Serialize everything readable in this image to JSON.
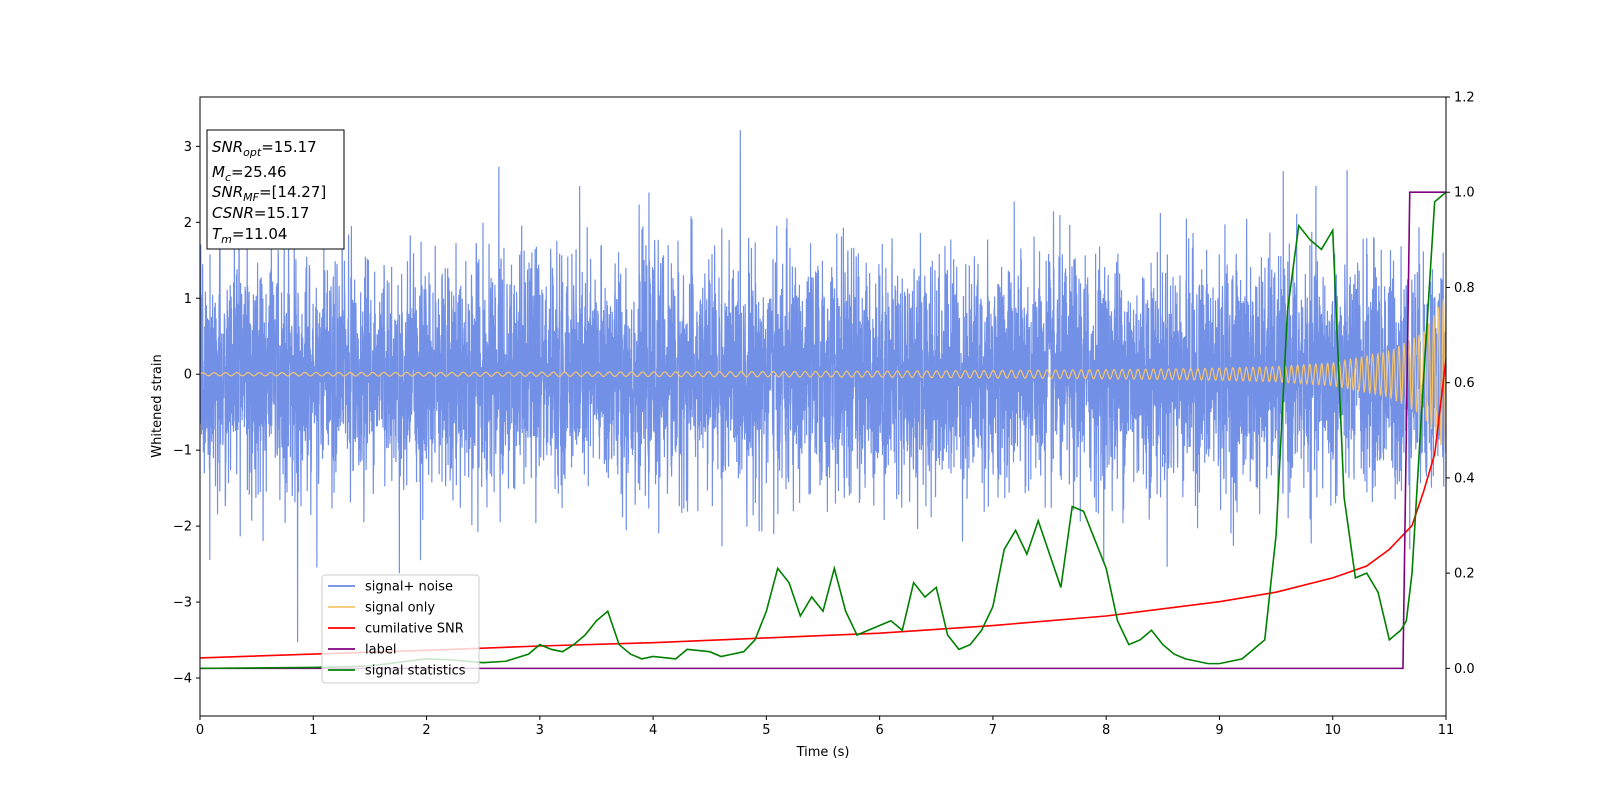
{
  "chart_data": {
    "type": "line",
    "xlabel": "Time (s)",
    "ylabel": "Whitened strain",
    "xlim": [
      0,
      11
    ],
    "ylim_left": [
      -4.5,
      3.65
    ],
    "ylim_right": [
      -0.1,
      1.2
    ],
    "x_ticks": [
      0,
      1,
      2,
      3,
      4,
      5,
      6,
      7,
      8,
      9,
      10,
      11
    ],
    "y_ticks_left": [
      -4,
      -3,
      -2,
      -1,
      0,
      1,
      2,
      3
    ],
    "y_ticks_right": [
      0.0,
      0.2,
      0.4,
      0.6,
      0.8,
      1.0,
      1.2
    ],
    "info_box": [
      {
        "main": "SNR",
        "sub": "opt",
        "rest": "=15.17"
      },
      {
        "main": "M",
        "sub": "c",
        "rest": "=25.46"
      },
      {
        "main": "SNR",
        "sub": "MF",
        "rest": "=[14.27]"
      },
      {
        "main": "CSNR",
        "sub": "",
        "rest": "=15.17"
      },
      {
        "main": "T",
        "sub": "m",
        "rest": "=11.04"
      }
    ],
    "legend_position": "lower-left",
    "series": [
      {
        "name": "signal+ noise",
        "axis": "left",
        "color": "#6b8ae6",
        "style": "dense-noise",
        "amplitude_envelope": [
          -1.6,
          1.6
        ],
        "peak_range": [
          -3.75,
          3.3
        ]
      },
      {
        "name": "signal only",
        "axis": "left",
        "color": "#f5c46e",
        "style": "chirp",
        "x": [
          0,
          2,
          4,
          6,
          8,
          9,
          9.5,
          10,
          10.5,
          10.8,
          11
        ],
        "amplitude": [
          0.02,
          0.025,
          0.03,
          0.04,
          0.06,
          0.08,
          0.1,
          0.15,
          0.3,
          0.55,
          1.05
        ]
      },
      {
        "name": "cumilative SNR",
        "axis": "right",
        "color": "#ff0000",
        "x": [
          0,
          1,
          2,
          3,
          4,
          5,
          6,
          7,
          8,
          9,
          9.5,
          10,
          10.3,
          10.5,
          10.7,
          10.8,
          10.9,
          11
        ],
        "y": [
          0.022,
          0.03,
          0.038,
          0.047,
          0.054,
          0.064,
          0.074,
          0.09,
          0.11,
          0.14,
          0.16,
          0.19,
          0.215,
          0.25,
          0.3,
          0.37,
          0.45,
          0.65
        ]
      },
      {
        "name": "label",
        "axis": "right",
        "color": "#800080",
        "x": [
          0,
          10.62,
          10.68,
          11
        ],
        "y": [
          0,
          0,
          1,
          1
        ]
      },
      {
        "name": "signal statistics",
        "axis": "right",
        "color": "#008000",
        "x": [
          0,
          0.5,
          1,
          1.5,
          2,
          2.2,
          2.5,
          2.7,
          2.9,
          3.0,
          3.1,
          3.2,
          3.3,
          3.4,
          3.5,
          3.6,
          3.7,
          3.8,
          3.9,
          4.0,
          4.2,
          4.3,
          4.5,
          4.6,
          4.7,
          4.8,
          4.9,
          5.0,
          5.1,
          5.2,
          5.3,
          5.4,
          5.5,
          5.6,
          5.7,
          5.8,
          5.9,
          6.0,
          6.1,
          6.2,
          6.3,
          6.4,
          6.5,
          6.6,
          6.7,
          6.8,
          6.9,
          7.0,
          7.1,
          7.2,
          7.3,
          7.4,
          7.5,
          7.6,
          7.7,
          7.8,
          7.9,
          8.0,
          8.1,
          8.2,
          8.3,
          8.4,
          8.5,
          8.6,
          8.7,
          8.8,
          8.9,
          9.0,
          9.1,
          9.2,
          9.3,
          9.4,
          9.5,
          9.6,
          9.7,
          9.8,
          9.9,
          10.0,
          10.1,
          10.2,
          10.3,
          10.4,
          10.5,
          10.6,
          10.65,
          10.7,
          10.8,
          10.9,
          11.0
        ],
        "y": [
          0.0,
          0.001,
          0.002,
          0.005,
          0.02,
          0.018,
          0.012,
          0.015,
          0.03,
          0.05,
          0.04,
          0.035,
          0.05,
          0.07,
          0.1,
          0.12,
          0.05,
          0.03,
          0.02,
          0.025,
          0.02,
          0.04,
          0.035,
          0.025,
          0.03,
          0.035,
          0.06,
          0.12,
          0.21,
          0.18,
          0.11,
          0.15,
          0.12,
          0.21,
          0.12,
          0.07,
          0.08,
          0.09,
          0.1,
          0.08,
          0.18,
          0.15,
          0.17,
          0.07,
          0.04,
          0.05,
          0.08,
          0.13,
          0.25,
          0.29,
          0.24,
          0.31,
          0.24,
          0.17,
          0.34,
          0.33,
          0.27,
          0.21,
          0.1,
          0.05,
          0.06,
          0.08,
          0.05,
          0.03,
          0.02,
          0.015,
          0.01,
          0.01,
          0.015,
          0.02,
          0.04,
          0.06,
          0.28,
          0.75,
          0.93,
          0.9,
          0.88,
          0.92,
          0.36,
          0.19,
          0.2,
          0.16,
          0.06,
          0.08,
          0.1,
          0.2,
          0.6,
          0.98,
          1.0
        ]
      }
    ]
  }
}
